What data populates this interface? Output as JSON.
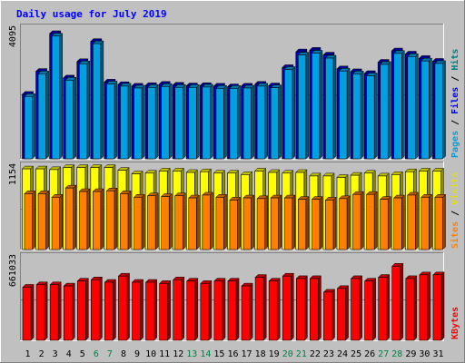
{
  "chart_data": {
    "type": "bar",
    "title": "Daily usage for July 2019",
    "categories": [
      "1",
      "2",
      "3",
      "4",
      "5",
      "6",
      "7",
      "8",
      "9",
      "10",
      "11",
      "12",
      "13",
      "14",
      "15",
      "16",
      "17",
      "18",
      "19",
      "20",
      "21",
      "22",
      "23",
      "24",
      "25",
      "26",
      "27",
      "28",
      "29",
      "30",
      "31"
    ],
    "weekend_days": [
      "6",
      "7",
      "13",
      "14",
      "20",
      "21",
      "27",
      "28"
    ],
    "panels": [
      {
        "name": "top",
        "max_label": "4095",
        "ymax": 4095,
        "right_labels": [
          {
            "text": "Pages",
            "color": "#00a0e0"
          },
          {
            "text": " / ",
            "color": "#000000"
          },
          {
            "text": "Files",
            "color": "#0000ff"
          },
          {
            "text": " / ",
            "color": "#000000"
          },
          {
            "text": "Hits",
            "color": "#008080"
          }
        ],
        "series": [
          {
            "name": "Hits",
            "color": "#0000c8",
            "values": [
              2050,
              2780,
              3980,
              2570,
              3090,
              3730,
              2440,
              2360,
              2310,
              2330,
              2370,
              2340,
              2320,
              2330,
              2310,
              2290,
              2310,
              2370,
              2320,
              2900,
              3400,
              3450,
              3300,
              2860,
              2770,
              2710,
              3070,
              3430,
              3330,
              3190,
              3100
            ]
          },
          {
            "name": "Files",
            "color": "#00a0e0",
            "values": [
              1980,
              2700,
              3900,
              2500,
              3020,
              3660,
              2380,
              2310,
              2250,
              2270,
              2300,
              2270,
              2270,
              2280,
              2240,
              2240,
              2250,
              2310,
              2260,
              2840,
              3300,
              3360,
              3200,
              2790,
              2700,
              2640,
              3000,
              3350,
              3250,
              3110,
              3030
            ]
          }
        ]
      },
      {
        "name": "middle",
        "max_label": "1154",
        "ymax": 1154,
        "right_labels": [
          {
            "text": "Sites",
            "color": "#ff8000"
          },
          {
            "text": " / ",
            "color": "#000000"
          },
          {
            "text": "Visits",
            "color": "#e0e000"
          }
        ],
        "series": [
          {
            "name": "Visits",
            "color": "#ffff00",
            "values": [
              1140,
              1140,
              1130,
              1160,
              1160,
              1160,
              1160,
              1120,
              1070,
              1080,
              1110,
              1110,
              1090,
              1100,
              1080,
              1080,
              1060,
              1110,
              1090,
              1080,
              1090,
              1040,
              1040,
              1020,
              1050,
              1080,
              1040,
              1060,
              1100,
              1110,
              1110
            ]
          },
          {
            "name": "Sites",
            "color": "#ff8000",
            "values": [
              790,
              790,
              740,
              870,
              820,
              820,
              830,
              790,
              740,
              760,
              750,
              760,
              730,
              770,
              740,
              700,
              730,
              720,
              730,
              730,
              710,
              710,
              700,
              720,
              780,
              780,
              710,
              730,
              770,
              740,
              740
            ]
          }
        ]
      },
      {
        "name": "bottom",
        "max_label": "661033",
        "ymax": 661033,
        "right_labels": [
          {
            "text": "KBytes",
            "color": "#ff0000"
          }
        ],
        "series": [
          {
            "name": "KBytes",
            "color": "#ff0000",
            "values": [
              430000,
              450000,
              450000,
              440000,
              480000,
              490000,
              470000,
              520000,
              470000,
              470000,
              460000,
              490000,
              480000,
              460000,
              480000,
              480000,
              440000,
              510000,
              480000,
              520000,
              500000,
              500000,
              390000,
              420000,
              500000,
              480000,
              510000,
              600000,
              500000,
              530000,
              530000
            ]
          }
        ]
      }
    ]
  }
}
